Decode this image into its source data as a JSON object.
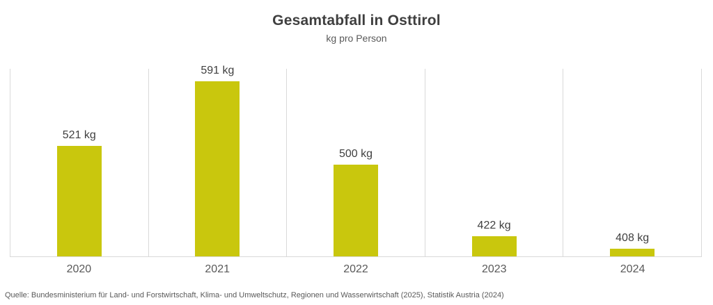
{
  "header": {
    "title": "Gesamtabfall in Osttirol",
    "subtitle": "kg pro Person"
  },
  "source_note": "Quelle: Bundesministerium für Land- und Forstwirtschaft, Klima- und Umweltschutz, Regionen und Wasserwirtschaft (2025), Statistik Austria (2024)",
  "colors": {
    "bar": "#c9c70d",
    "gridline": "#d9d9d9",
    "title_text": "#3f3f3f",
    "axis_text": "#595959"
  },
  "chart_data": {
    "type": "bar",
    "title": "Gesamtabfall in Osttirol",
    "subtitle": "kg pro Person",
    "categories": [
      "2020",
      "2021",
      "2022",
      "2023",
      "2024"
    ],
    "values": [
      521,
      591,
      500,
      422,
      408
    ],
    "value_labels": [
      "521 kg",
      "591 kg",
      "500 kg",
      "422 kg",
      "408 kg"
    ],
    "unit": "kg",
    "xlabel": "",
    "ylabel": "kg pro Person",
    "ylim": [
      400,
      605
    ],
    "grid": "vertical-category-separators-only",
    "legend": "none"
  }
}
